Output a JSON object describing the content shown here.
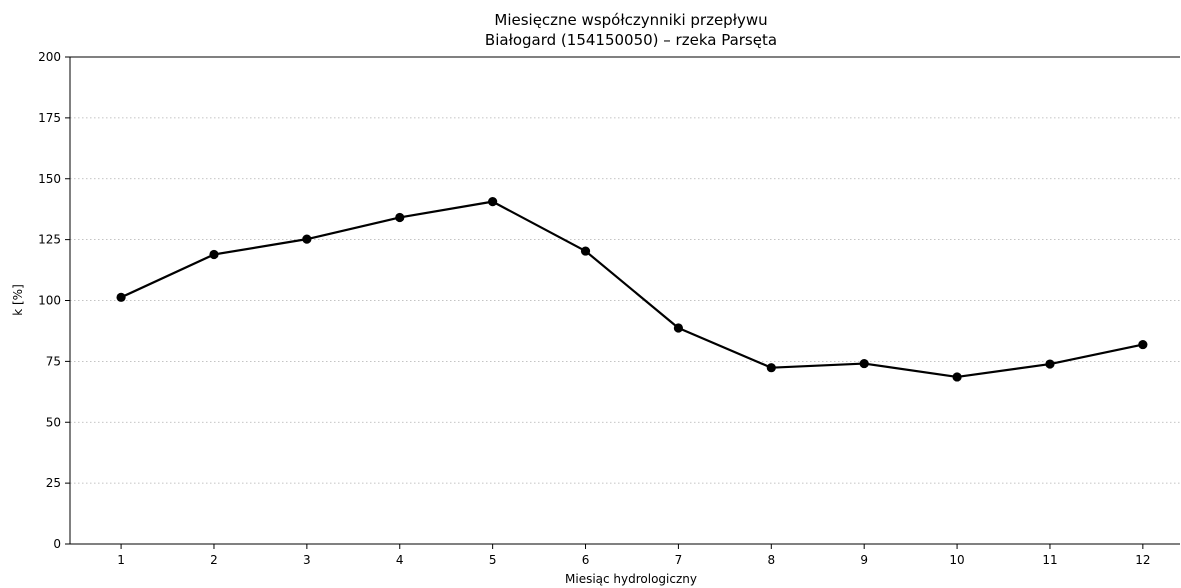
{
  "chart_data": {
    "type": "line",
    "title": "Miesięczne współczynniki przepływu",
    "subtitle": "Białogard (154150050) – rzeka Parsęta",
    "xlabel": "Miesiąc hydrologiczny",
    "ylabel": "k [%]",
    "x": [
      1,
      2,
      3,
      4,
      5,
      6,
      7,
      8,
      9,
      10,
      11,
      12
    ],
    "series": [
      {
        "values": [
          101.3,
          118.9,
          125.2,
          134.1,
          140.6,
          120.3,
          88.7,
          72.4,
          74.1,
          68.6,
          73.9,
          81.9
        ],
        "color": "#000000",
        "marker": "circle"
      }
    ],
    "xlim": [
      0.45,
      12.4
    ],
    "ylim": [
      0,
      200
    ],
    "yticks": [
      0,
      25,
      50,
      75,
      100,
      125,
      150,
      175,
      200
    ],
    "xticks": [
      1,
      2,
      3,
      4,
      5,
      6,
      7,
      8,
      9,
      10,
      11,
      12
    ],
    "grid": "horizontal dotted",
    "legend": "none"
  }
}
